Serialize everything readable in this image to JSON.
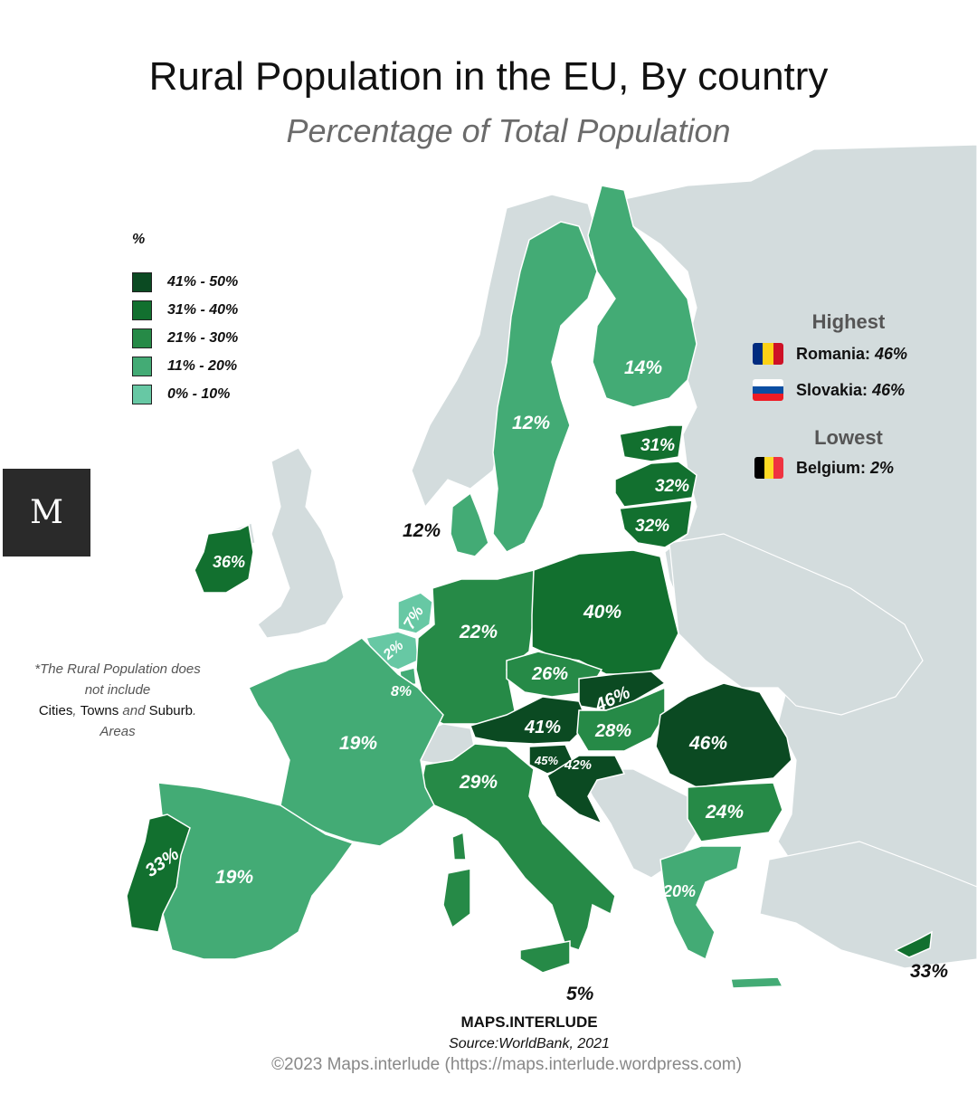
{
  "title": "Rural Population in the EU, By country",
  "subtitle": "Percentage of Total Population",
  "legend": {
    "title": "%",
    "items": [
      {
        "label": "41% - 50%",
        "color": "#0b4a22"
      },
      {
        "label": "31% - 40%",
        "color": "#12702f"
      },
      {
        "label": "21% - 30%",
        "color": "#268a47"
      },
      {
        "label": "11% - 20%",
        "color": "#43ab75"
      },
      {
        "label": "0% - 10%",
        "color": "#67c8a4"
      }
    ]
  },
  "colors": {
    "sea": "#ffffff",
    "non_eu_land": "#d3dcdd",
    "border": "#ffffff"
  },
  "countries": [
    {
      "name": "Romania",
      "value": 46,
      "label": "46%"
    },
    {
      "name": "Slovakia",
      "value": 46,
      "label": "46%"
    },
    {
      "name": "Slovenia",
      "value": 45,
      "label": "45%"
    },
    {
      "name": "Croatia",
      "value": 42,
      "label": "42%"
    },
    {
      "name": "Austria",
      "value": 41,
      "label": "41%"
    },
    {
      "name": "Poland",
      "value": 40,
      "label": "40%"
    },
    {
      "name": "Ireland",
      "value": 36,
      "label": "36%"
    },
    {
      "name": "Portugal",
      "value": 33,
      "label": "33%"
    },
    {
      "name": "Cyprus",
      "value": 33,
      "label": "33%"
    },
    {
      "name": "Latvia",
      "value": 32,
      "label": "32%"
    },
    {
      "name": "Lithuania",
      "value": 32,
      "label": "32%"
    },
    {
      "name": "Estonia",
      "value": 31,
      "label": "31%"
    },
    {
      "name": "Italy",
      "value": 29,
      "label": "29%"
    },
    {
      "name": "Hungary",
      "value": 28,
      "label": "28%"
    },
    {
      "name": "Czechia",
      "value": 26,
      "label": "26%"
    },
    {
      "name": "Bulgaria",
      "value": 24,
      "label": "24%"
    },
    {
      "name": "Germany",
      "value": 22,
      "label": "22%"
    },
    {
      "name": "Greece",
      "value": 20,
      "label": "20%"
    },
    {
      "name": "France",
      "value": 19,
      "label": "19%"
    },
    {
      "name": "Spain",
      "value": 19,
      "label": "19%"
    },
    {
      "name": "Finland",
      "value": 14,
      "label": "14%"
    },
    {
      "name": "Sweden",
      "value": 12,
      "label": "12%"
    },
    {
      "name": "Denmark",
      "value": 12,
      "label": "12%"
    },
    {
      "name": "Luxembourg",
      "value": 8,
      "label": "8%"
    },
    {
      "name": "Netherlands",
      "value": 7,
      "label": "7%"
    },
    {
      "name": "Malta",
      "value": 5,
      "label": "5%"
    },
    {
      "name": "Belgium",
      "value": 2,
      "label": "2%"
    }
  ],
  "logo": "M",
  "note": {
    "line1": "*The Rural Population does",
    "line2": "not include",
    "cities": "Cities",
    "sep1": ", ",
    "towns": "Towns",
    "and": " and ",
    "suburb": "Suburb",
    "dot": ".",
    "line4": "Areas"
  },
  "highest": {
    "heading": "Highest",
    "items": [
      {
        "country": "Romania:",
        "value": "46%",
        "flag": [
          "#002b7f",
          "#fcd116",
          "#ce1126"
        ]
      },
      {
        "country": "Slovakia:",
        "value": "46%",
        "flag_h": [
          "#ffffff",
          "#0b4ea2",
          "#ee1c25"
        ]
      }
    ]
  },
  "lowest": {
    "heading": "Lowest",
    "items": [
      {
        "country": "Belgium:",
        "value": "2%",
        "flag": [
          "#000000",
          "#fdda24",
          "#ef3340"
        ]
      }
    ]
  },
  "footer": {
    "brand": "MAPS.INTERLUDE",
    "source": "Source:WorldBank, 2021",
    "copyright": "©2023 Maps.interlude (https://maps.interlude.wordpress.com)"
  }
}
